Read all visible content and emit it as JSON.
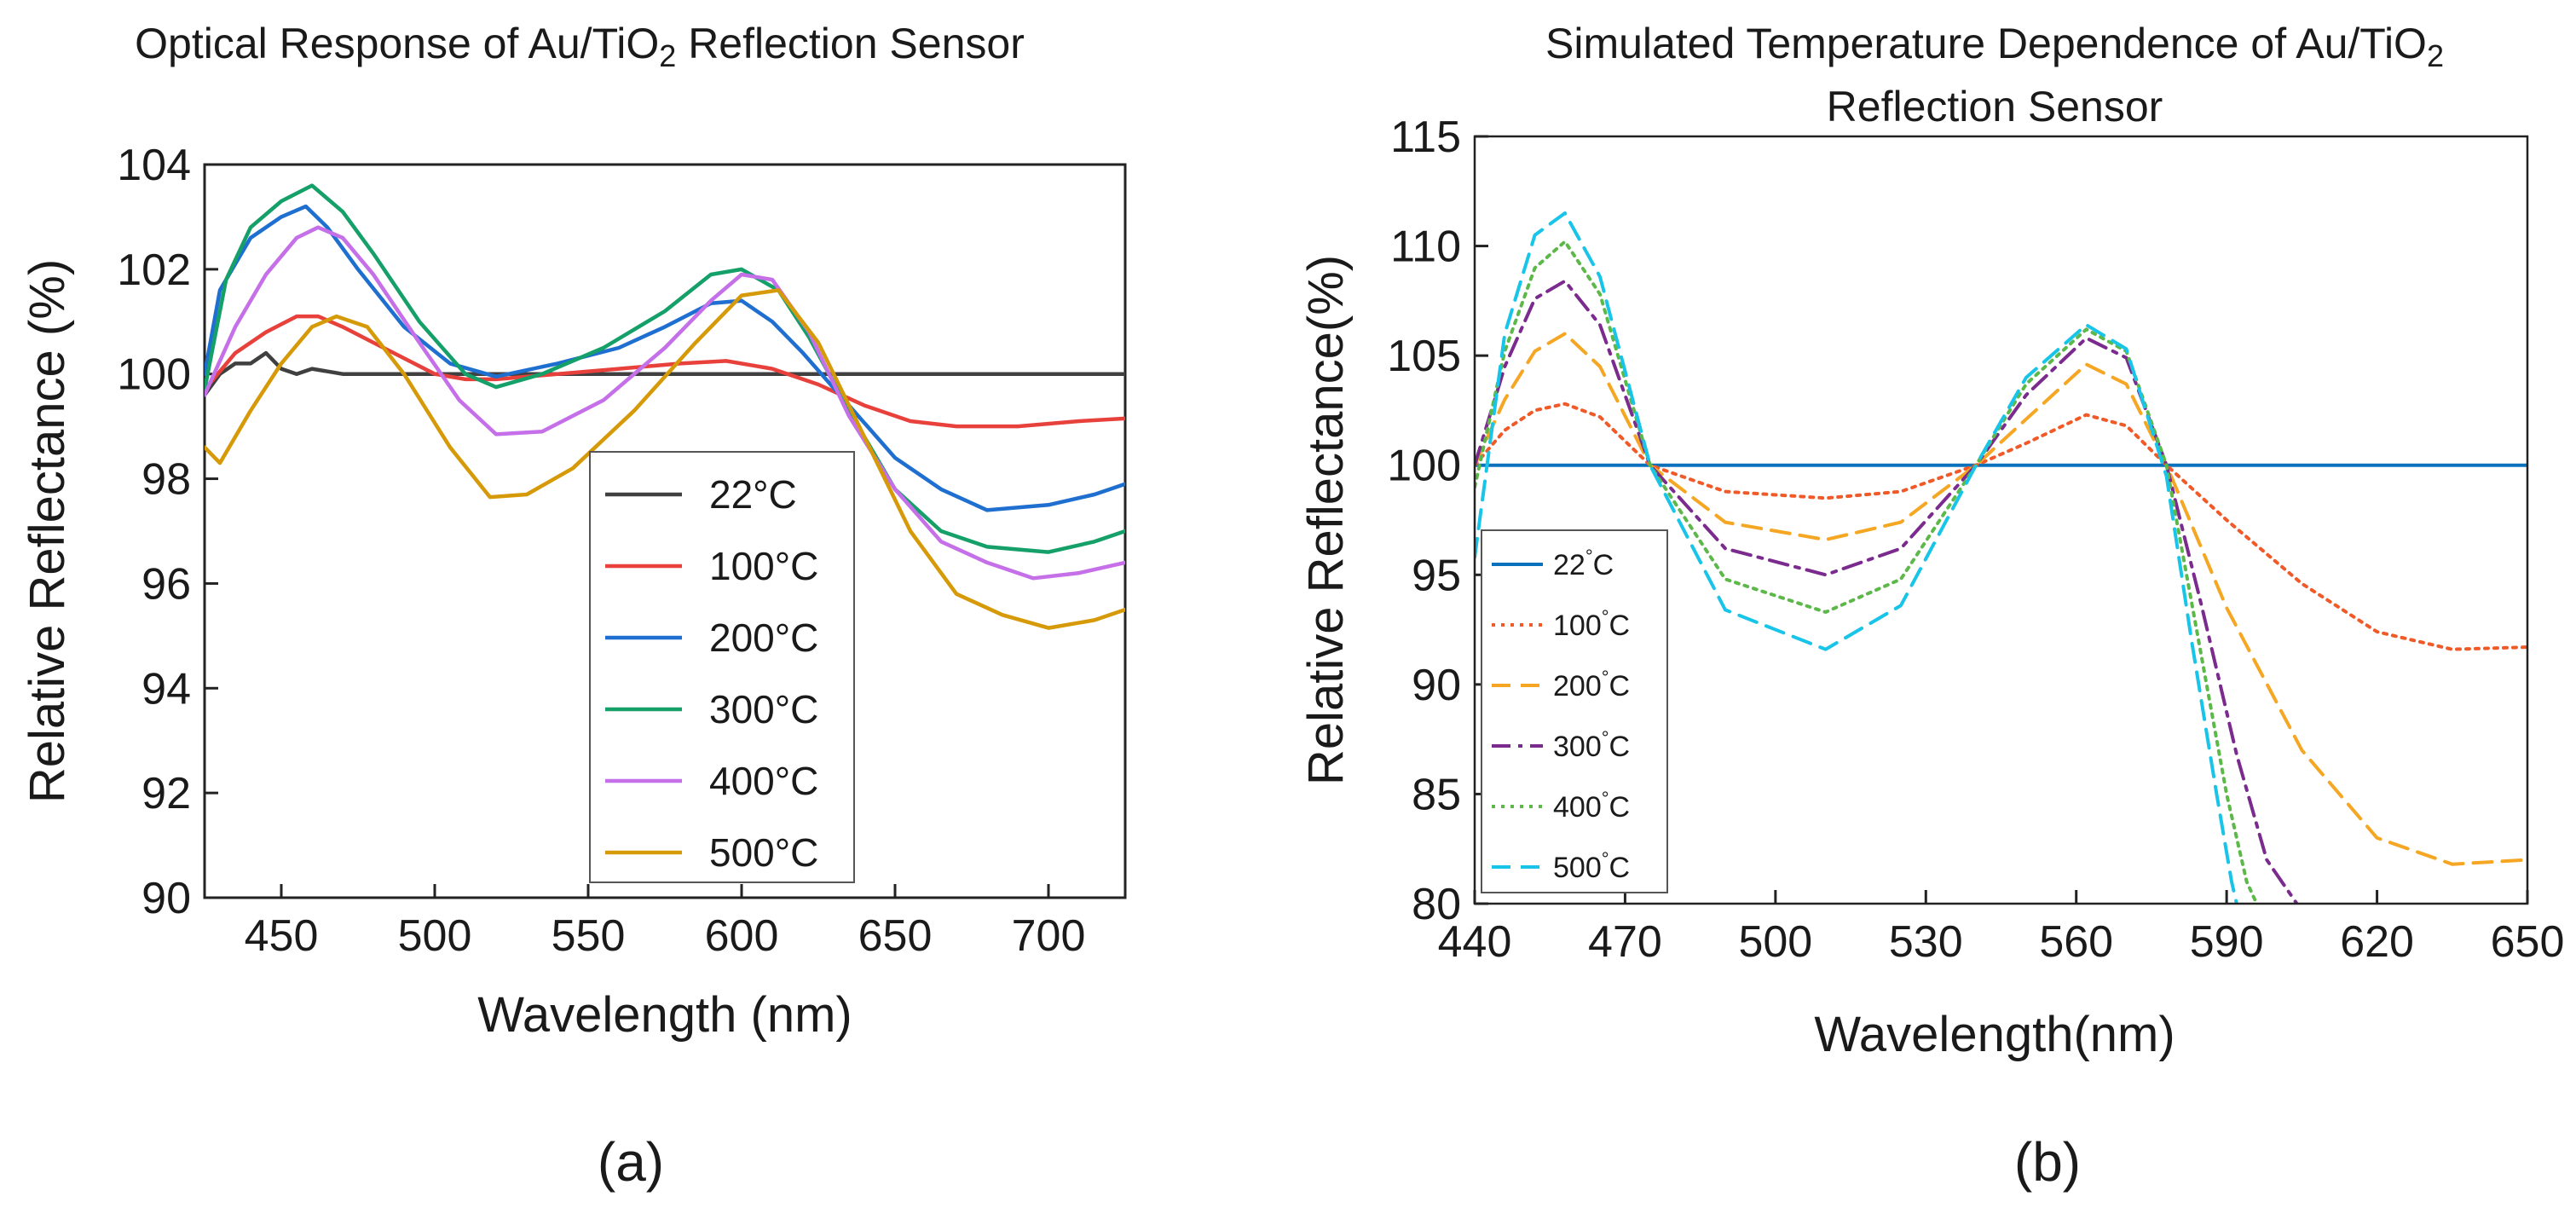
{
  "chart_data": [
    {
      "id": "a",
      "type": "line",
      "panel_label": "(a)",
      "title": "Optical Response of Au/TiO2 Reflection Sensor",
      "title_parts": [
        "Optical Response of Au/TiO",
        "2",
        " Reflection Sensor"
      ],
      "xlabel": "Wavelength (nm)",
      "ylabel": "Relative Reflectance (%)",
      "xlim": [
        425,
        725
      ],
      "ylim": [
        90,
        104
      ],
      "xticks": [
        450,
        500,
        550,
        600,
        650,
        700
      ],
      "yticks": [
        90,
        92,
        94,
        96,
        98,
        100,
        102,
        104
      ],
      "grid": false,
      "legend_position": "bottom-right",
      "series": [
        {
          "name": "22°C",
          "color": "#404040",
          "dash": "solid",
          "points": [
            [
              425,
              99.6
            ],
            [
              430,
              100.0
            ],
            [
              435,
              100.2
            ],
            [
              440,
              100.2
            ],
            [
              445,
              100.4
            ],
            [
              450,
              100.1
            ],
            [
              455,
              100.0
            ],
            [
              460,
              100.1
            ],
            [
              470,
              100.0
            ],
            [
              480,
              100.0
            ],
            [
              500,
              100.0
            ],
            [
              550,
              100.0
            ],
            [
              600,
              100.0
            ],
            [
              650,
              100.0
            ],
            [
              700,
              100.0
            ],
            [
              725,
              100.0
            ]
          ]
        },
        {
          "name": "100°C",
          "color": "#e8413c",
          "dash": "solid",
          "points": [
            [
              425,
              99.7
            ],
            [
              435,
              100.4
            ],
            [
              445,
              100.8
            ],
            [
              455,
              101.1
            ],
            [
              462,
              101.1
            ],
            [
              470,
              100.9
            ],
            [
              480,
              100.6
            ],
            [
              490,
              100.3
            ],
            [
              500,
              100.0
            ],
            [
              510,
              99.9
            ],
            [
              520,
              99.9
            ],
            [
              540,
              100.0
            ],
            [
              560,
              100.1
            ],
            [
              580,
              100.2
            ],
            [
              595,
              100.25
            ],
            [
              610,
              100.1
            ],
            [
              625,
              99.8
            ],
            [
              640,
              99.4
            ],
            [
              655,
              99.1
            ],
            [
              670,
              99.0
            ],
            [
              690,
              99.0
            ],
            [
              710,
              99.1
            ],
            [
              725,
              99.15
            ]
          ]
        },
        {
          "name": "200°C",
          "color": "#1f6fd0",
          "dash": "solid",
          "points": [
            [
              425,
              100.0
            ],
            [
              430,
              101.6
            ],
            [
              440,
              102.6
            ],
            [
              450,
              103.0
            ],
            [
              458,
              103.2
            ],
            [
              465,
              102.8
            ],
            [
              475,
              102.0
            ],
            [
              490,
              100.9
            ],
            [
              505,
              100.2
            ],
            [
              520,
              99.95
            ],
            [
              540,
              100.2
            ],
            [
              560,
              100.5
            ],
            [
              575,
              100.9
            ],
            [
              590,
              101.35
            ],
            [
              600,
              101.4
            ],
            [
              610,
              101.0
            ],
            [
              620,
              100.4
            ],
            [
              635,
              99.4
            ],
            [
              650,
              98.4
            ],
            [
              665,
              97.8
            ],
            [
              680,
              97.4
            ],
            [
              700,
              97.5
            ],
            [
              715,
              97.7
            ],
            [
              725,
              97.9
            ]
          ]
        },
        {
          "name": "300°C",
          "color": "#14a068",
          "dash": "solid",
          "points": [
            [
              425,
              99.7
            ],
            [
              432,
              101.8
            ],
            [
              440,
              102.8
            ],
            [
              450,
              103.3
            ],
            [
              460,
              103.6
            ],
            [
              470,
              103.1
            ],
            [
              480,
              102.3
            ],
            [
              495,
              101.0
            ],
            [
              510,
              100.0
            ],
            [
              520,
              99.75
            ],
            [
              535,
              100.0
            ],
            [
              555,
              100.5
            ],
            [
              575,
              101.2
            ],
            [
              590,
              101.9
            ],
            [
              600,
              102.0
            ],
            [
              612,
              101.6
            ],
            [
              622,
              100.7
            ],
            [
              635,
              99.3
            ],
            [
              650,
              97.8
            ],
            [
              665,
              97.0
            ],
            [
              680,
              96.7
            ],
            [
              700,
              96.6
            ],
            [
              715,
              96.8
            ],
            [
              725,
              97.0
            ]
          ]
        },
        {
          "name": "400°C",
          "color": "#c56fe8",
          "dash": "solid",
          "points": [
            [
              425,
              99.6
            ],
            [
              435,
              100.9
            ],
            [
              445,
              101.9
            ],
            [
              455,
              102.6
            ],
            [
              462,
              102.8
            ],
            [
              470,
              102.6
            ],
            [
              480,
              101.9
            ],
            [
              495,
              100.6
            ],
            [
              508,
              99.5
            ],
            [
              520,
              98.85
            ],
            [
              535,
              98.9
            ],
            [
              555,
              99.5
            ],
            [
              575,
              100.5
            ],
            [
              590,
              101.4
            ],
            [
              600,
              101.9
            ],
            [
              610,
              101.8
            ],
            [
              622,
              100.8
            ],
            [
              635,
              99.2
            ],
            [
              650,
              97.8
            ],
            [
              665,
              96.8
            ],
            [
              680,
              96.4
            ],
            [
              695,
              96.1
            ],
            [
              710,
              96.2
            ],
            [
              725,
              96.4
            ]
          ]
        },
        {
          "name": "500°C",
          "color": "#d69a08",
          "dash": "solid",
          "points": [
            [
              425,
              98.6
            ],
            [
              430,
              98.3
            ],
            [
              440,
              99.3
            ],
            [
              450,
              100.2
            ],
            [
              460,
              100.9
            ],
            [
              468,
              101.1
            ],
            [
              478,
              100.9
            ],
            [
              490,
              100.0
            ],
            [
              505,
              98.6
            ],
            [
              518,
              97.65
            ],
            [
              530,
              97.7
            ],
            [
              545,
              98.2
            ],
            [
              565,
              99.3
            ],
            [
              585,
              100.6
            ],
            [
              600,
              101.5
            ],
            [
              612,
              101.6
            ],
            [
              625,
              100.6
            ],
            [
              640,
              98.8
            ],
            [
              655,
              97.0
            ],
            [
              670,
              95.8
            ],
            [
              685,
              95.4
            ],
            [
              700,
              95.15
            ],
            [
              715,
              95.3
            ],
            [
              725,
              95.5
            ]
          ]
        }
      ]
    },
    {
      "id": "b",
      "type": "line",
      "panel_label": "(b)",
      "title": "Simulated Temperature Dependence of Au/TiO2 Reflection Sensor",
      "title_line1_parts": [
        "Simulated Temperature Dependence of Au/TiO",
        "2"
      ],
      "title_line2": "Reflection Sensor",
      "xlabel": "Wavelength(nm)",
      "ylabel": "Relative Reflectance(%)",
      "xlim": [
        440,
        650
      ],
      "ylim": [
        80,
        115
      ],
      "xticks": [
        440,
        470,
        500,
        530,
        560,
        590,
        620,
        650
      ],
      "yticks": [
        80,
        85,
        90,
        95,
        100,
        105,
        110,
        115
      ],
      "grid": false,
      "legend_position": "bottom-left",
      "series": [
        {
          "name": "22°C",
          "label": "22",
          "unit": "C",
          "color": "#0a72bd",
          "dash": "solid",
          "points": [
            [
              440,
              100
            ],
            [
              650,
              100
            ]
          ]
        },
        {
          "name": "100°C",
          "label": "100",
          "unit": "C",
          "color": "#f05a28",
          "dash": "dotted",
          "points": [
            [
              440,
              100.0
            ],
            [
              446,
              101.6
            ],
            [
              452,
              102.5
            ],
            [
              458,
              102.8
            ],
            [
              465,
              102.2
            ],
            [
              475,
              100.0
            ],
            [
              490,
              98.8
            ],
            [
              510,
              98.5
            ],
            [
              525,
              98.8
            ],
            [
              540,
              100.0
            ],
            [
              550,
              101.0
            ],
            [
              562,
              102.3
            ],
            [
              570,
              101.8
            ],
            [
              578,
              100.0
            ],
            [
              590,
              97.5
            ],
            [
              605,
              94.6
            ],
            [
              620,
              92.4
            ],
            [
              635,
              91.6
            ],
            [
              650,
              91.7
            ]
          ]
        },
        {
          "name": "200°C",
          "label": "200",
          "unit": "C",
          "color": "#f5a623",
          "dash": "dashed",
          "points": [
            [
              440,
              100.0
            ],
            [
              446,
              103.0
            ],
            [
              452,
              105.2
            ],
            [
              458,
              106.0
            ],
            [
              465,
              104.5
            ],
            [
              475,
              100.0
            ],
            [
              490,
              97.4
            ],
            [
              510,
              96.6
            ],
            [
              525,
              97.4
            ],
            [
              540,
              100.0
            ],
            [
              550,
              102.1
            ],
            [
              562,
              104.6
            ],
            [
              570,
              103.7
            ],
            [
              578,
              100.0
            ],
            [
              590,
              93.5
            ],
            [
              605,
              87.0
            ],
            [
              620,
              83.0
            ],
            [
              635,
              81.8
            ],
            [
              650,
              82.0
            ]
          ]
        },
        {
          "name": "300°C",
          "label": "300",
          "unit": "C",
          "color": "#7b2a8e",
          "dash": "dashdot",
          "points": [
            [
              440,
              100.0
            ],
            [
              446,
              104.5
            ],
            [
              452,
              107.6
            ],
            [
              458,
              108.4
            ],
            [
              465,
              106.4
            ],
            [
              475,
              100.0
            ],
            [
              490,
              96.2
            ],
            [
              510,
              95.0
            ],
            [
              525,
              96.2
            ],
            [
              540,
              100.0
            ],
            [
              550,
              103.2
            ],
            [
              562,
              105.8
            ],
            [
              570,
              104.9
            ],
            [
              578,
              100.0
            ],
            [
              585,
              93.6
            ],
            [
              592,
              86.8
            ],
            [
              598,
              82.0
            ],
            [
              604,
              80.0
            ]
          ]
        },
        {
          "name": "400°C",
          "label": "400",
          "unit": "C",
          "color": "#5db84a",
          "dash": "dotted",
          "points": [
            [
              440,
              99.0
            ],
            [
              446,
              105.2
            ],
            [
              452,
              109.0
            ],
            [
              458,
              110.2
            ],
            [
              465,
              107.8
            ],
            [
              475,
              100.0
            ],
            [
              490,
              94.8
            ],
            [
              510,
              93.3
            ],
            [
              525,
              94.8
            ],
            [
              540,
              100.0
            ],
            [
              550,
              103.7
            ],
            [
              562,
              106.2
            ],
            [
              570,
              105.2
            ],
            [
              578,
              100.0
            ],
            [
              584,
              92.5
            ],
            [
              590,
              85.0
            ],
            [
              594,
              81.0
            ],
            [
              596,
              80.0
            ]
          ]
        },
        {
          "name": "500°C",
          "label": "500",
          "unit": "C",
          "color": "#18c4e8",
          "dash": "dashed",
          "points": [
            [
              440,
              95.8
            ],
            [
              446,
              106.0
            ],
            [
              452,
              110.5
            ],
            [
              458,
              111.5
            ],
            [
              465,
              108.6
            ],
            [
              475,
              100.0
            ],
            [
              490,
              93.4
            ],
            [
              510,
              91.6
            ],
            [
              525,
              93.6
            ],
            [
              540,
              100.0
            ],
            [
              550,
              104.0
            ],
            [
              562,
              106.4
            ],
            [
              570,
              105.3
            ],
            [
              578,
              99.5
            ],
            [
              583,
              92.0
            ],
            [
              588,
              85.0
            ],
            [
              591,
              81.0
            ],
            [
              592,
              80.0
            ]
          ]
        }
      ]
    }
  ]
}
